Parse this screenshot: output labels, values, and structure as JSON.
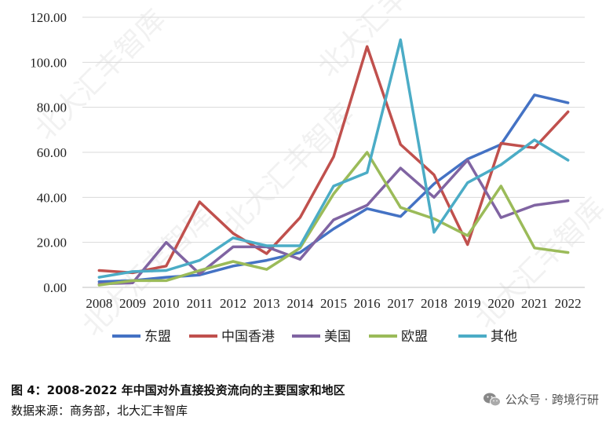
{
  "chart_data": {
    "type": "line",
    "categories": [
      "2008",
      "2009",
      "2010",
      "2011",
      "2012",
      "2013",
      "2014",
      "2015",
      "2016",
      "2017",
      "2018",
      "2019",
      "2020",
      "2021",
      "2022"
    ],
    "ylim": [
      0,
      120
    ],
    "yticks": [
      "0.00",
      "20.00",
      "40.00",
      "60.00",
      "80.00",
      "100.00",
      "120.00"
    ],
    "grid": "horizontal",
    "legend_position": "bottom",
    "series": [
      {
        "name": "东盟",
        "color": "#4472c4",
        "values": [
          2.5,
          3.0,
          4.5,
          5.5,
          9.5,
          12.0,
          15.5,
          26.0,
          35.0,
          31.5,
          46.0,
          57.0,
          63.5,
          85.5,
          82.0
        ]
      },
      {
        "name": "中国香港",
        "color": "#c0504d",
        "values": [
          7.5,
          6.5,
          9.5,
          38.0,
          24.0,
          15.0,
          31.0,
          58.0,
          107.0,
          63.5,
          50.0,
          19.0,
          64.0,
          62.0,
          78.0
        ]
      },
      {
        "name": "美国",
        "color": "#8064a2",
        "values": [
          1.5,
          2.0,
          20.0,
          6.0,
          18.0,
          18.0,
          12.5,
          30.0,
          36.5,
          53.0,
          40.0,
          56.5,
          31.0,
          36.5,
          38.5
        ]
      },
      {
        "name": "欧盟",
        "color": "#9bbb59",
        "values": [
          1.0,
          3.0,
          3.0,
          7.5,
          11.5,
          8.0,
          17.5,
          41.5,
          60.0,
          35.5,
          30.5,
          23.0,
          45.0,
          17.5,
          15.5
        ]
      },
      {
        "name": "其他",
        "color": "#4bacc6",
        "values": [
          4.5,
          7.0,
          7.5,
          12.0,
          22.0,
          18.5,
          18.5,
          45.0,
          51.0,
          110.0,
          24.5,
          46.5,
          54.5,
          65.5,
          56.5
        ]
      }
    ]
  },
  "caption": "图 4：2008-2022 年中国对外直接投资流向的主要国家和地区",
  "source": "数据来源：商务部，北大汇丰智库",
  "wechat": {
    "icon": "wechat-icon",
    "label": "公众号 · 跨境行研"
  },
  "watermark": "北大汇丰智库"
}
